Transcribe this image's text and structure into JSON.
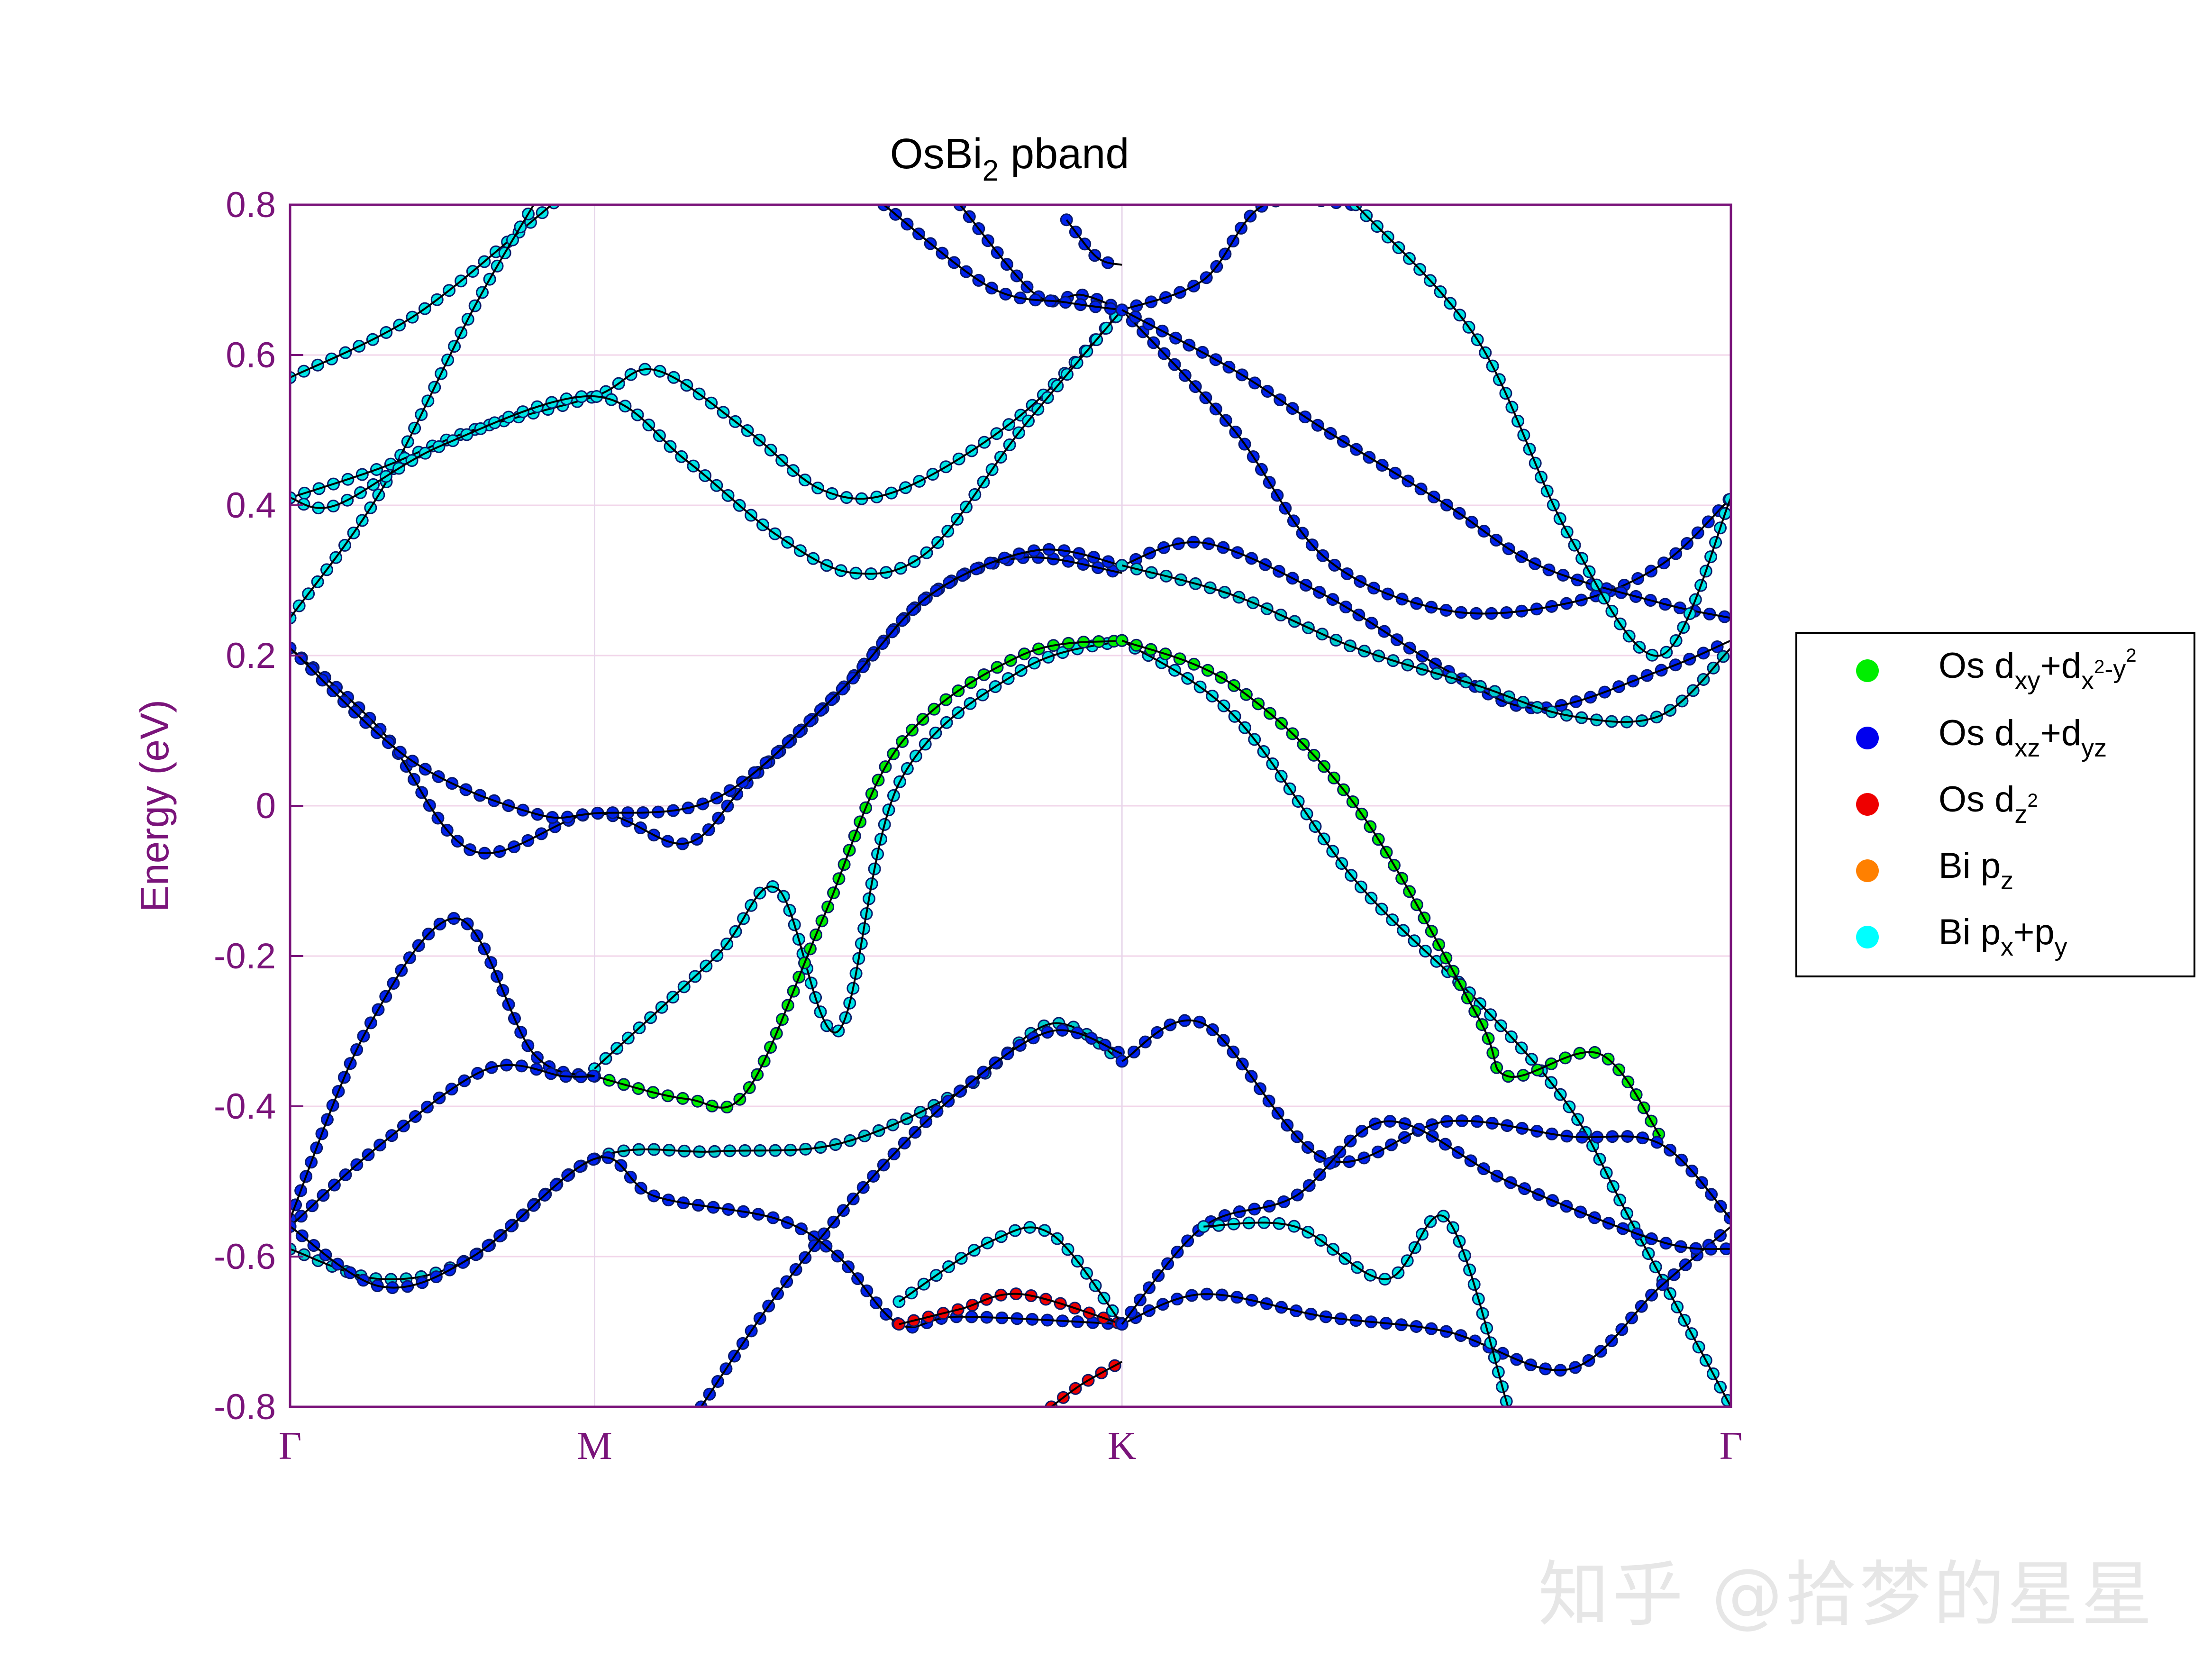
{
  "chart_data": {
    "type": "line",
    "title": "OsBi2 pband",
    "title_main": "OsBi",
    "title_sub": "2",
    "title_rest": " pband",
    "ylabel": "Energy (eV)",
    "ylim": [
      -0.8,
      0.8
    ],
    "yticks": [
      "0.8",
      "0.6",
      "0.4",
      "0.2",
      "0",
      "-0.2",
      "-0.4",
      "-0.6",
      "-0.8"
    ],
    "yticks_values": [
      0.8,
      0.6,
      0.4,
      0.2,
      0,
      -0.2,
      -0.4,
      -0.6,
      -0.8
    ],
    "kpath": [
      "Γ",
      "M",
      "K",
      "Γ"
    ],
    "kpath_positions": [
      0,
      1,
      2.732,
      4.732
    ],
    "grid": true,
    "legend_placement": "right",
    "legend": [
      {
        "label": "Os dxy+dx2-y2",
        "color": "#00ee00"
      },
      {
        "label": "Os dxz+dyz",
        "color": "#0000ee"
      },
      {
        "label": "Os dz2",
        "color": "#ee0000"
      },
      {
        "label": "Bi pz",
        "color": "#ff8000"
      },
      {
        "label": "Bi px+py",
        "color": "#00ffff"
      }
    ],
    "series": [
      {
        "color": "#00e5e5",
        "x": [
          0,
          0.4,
          0.8,
          1.0
        ],
        "y": [
          0.57,
          0.65,
          0.78,
          0.85
        ]
      },
      {
        "color": "#00e5e5",
        "x": [
          0,
          0.3,
          0.6,
          0.8
        ],
        "y": [
          0.25,
          0.42,
          0.66,
          0.8
        ]
      },
      {
        "color": "#00e5e5",
        "x": [
          0,
          0.3,
          0.6,
          1.0,
          1.2,
          1.5,
          1.75,
          2.0,
          2.4,
          2.732
        ],
        "y": [
          0.41,
          0.45,
          0.5,
          0.545,
          0.58,
          0.5,
          0.42,
          0.42,
          0.52,
          0.66
        ]
      },
      {
        "color": "#00e5e5",
        "x": [
          0,
          0.15,
          0.5,
          1.0,
          1.3,
          1.6,
          1.85,
          2.1,
          2.4,
          2.732
        ],
        "y": [
          0.41,
          0.4,
          0.48,
          0.545,
          0.46,
          0.36,
          0.31,
          0.34,
          0.5,
          0.66
        ]
      },
      {
        "color": "#0022ee",
        "x": [
          0,
          0.3,
          0.6,
          1.0,
          1.3,
          1.5,
          1.8,
          2.1,
          2.4,
          2.732
        ],
        "y": [
          0.21,
          0.1,
          -0.06,
          -0.01,
          -0.05,
          0.03,
          0.15,
          0.28,
          0.33,
          0.31
        ]
      },
      {
        "color": "#0022ee",
        "x": [
          0,
          0.4,
          0.8,
          1.0,
          1.4,
          1.8,
          2.1,
          2.45,
          2.732
        ],
        "y": [
          0.21,
          0.06,
          -0.01,
          -0.01,
          0.01,
          0.15,
          0.28,
          0.34,
          0.32
        ]
      },
      {
        "color": "#00e5e5",
        "x": [
          1.0,
          1.4,
          1.6,
          1.8,
          2.0,
          2.4,
          2.732
        ],
        "y": [
          -0.35,
          -0.2,
          -0.11,
          -0.3,
          0.03,
          0.18,
          0.22
        ]
      },
      {
        "color": "#00ee00",
        "x": [
          1.0,
          1.3,
          1.5,
          1.75,
          2.0,
          2.4,
          2.732
        ],
        "y": [
          -0.36,
          -0.39,
          -0.38,
          -0.15,
          0.08,
          0.2,
          0.22
        ]
      },
      {
        "color": "#0022ee",
        "x": [
          0,
          0.25,
          0.55,
          0.8,
          1.0
        ],
        "y": [
          -0.55,
          -0.3,
          -0.15,
          -0.33,
          -0.36
        ]
      },
      {
        "color": "#0022ee",
        "x": [
          0,
          0.3,
          0.65,
          0.9,
          1.0
        ],
        "y": [
          -0.56,
          -0.45,
          -0.35,
          -0.36,
          -0.36
        ]
      },
      {
        "color": "#00cccc",
        "x": [
          0,
          0.3,
          0.6,
          1.0,
          1.4,
          1.8,
          2.2,
          2.5,
          2.732
        ],
        "y": [
          -0.59,
          -0.63,
          -0.6,
          -0.47,
          -0.46,
          -0.45,
          -0.38,
          -0.29,
          -0.34
        ]
      },
      {
        "color": "#0022ee",
        "x": [
          0,
          0.3,
          0.6,
          1.0,
          1.2,
          1.6,
          1.8,
          2.0,
          2.2,
          2.732
        ],
        "y": [
          -0.56,
          -0.64,
          -0.6,
          -0.47,
          -0.52,
          -0.55,
          -0.6,
          -0.69,
          -0.68,
          -0.69
        ]
      },
      {
        "color": "#ee0000",
        "x": [
          2.0,
          2.2,
          2.4,
          2.732
        ],
        "y": [
          -0.69,
          -0.67,
          -0.65,
          -0.69
        ]
      },
      {
        "color": "#00e5e5",
        "x": [
          2.0,
          2.3,
          2.5,
          2.732
        ],
        "y": [
          -0.66,
          -0.58,
          -0.57,
          -0.69
        ]
      },
      {
        "color": "#ee0000",
        "x": [
          2.5,
          2.6,
          2.732
        ],
        "y": [
          -0.8,
          -0.77,
          -0.74
        ]
      },
      {
        "color": "#0022ee",
        "x": [
          1.35,
          1.6,
          1.9,
          2.2,
          2.5,
          2.732
        ],
        "y": [
          -0.8,
          -0.65,
          -0.5,
          -0.38,
          -0.3,
          -0.33
        ]
      },
      {
        "color": "#0022ee",
        "x": [
          2.2,
          2.45,
          2.6,
          2.732
        ],
        "y": [
          0.8,
          0.68,
          0.68,
          0.66
        ]
      },
      {
        "color": "#0022ee",
        "x": [
          1.95,
          2.3,
          2.55,
          2.732
        ],
        "y": [
          0.8,
          0.69,
          0.67,
          0.66
        ]
      },
      {
        "color": "#0022ee",
        "x": [
          2.55,
          2.65,
          2.732
        ],
        "y": [
          0.78,
          0.73,
          0.72
        ]
      },
      {
        "color": "#0022ee",
        "x": [
          2.732,
          3.0,
          3.2,
          3.5
        ],
        "y": [
          0.66,
          0.7,
          0.8,
          0.8
        ]
      },
      {
        "color": "#0022ee",
        "x": [
          2.732,
          3.1,
          3.4,
          3.8,
          4.2,
          4.5,
          4.732
        ],
        "y": [
          0.66,
          0.5,
          0.33,
          0.26,
          0.27,
          0.32,
          0.41
        ]
      },
      {
        "color": "#0022ee",
        "x": [
          2.732,
          3.1,
          3.4,
          3.8,
          4.1,
          4.5,
          4.732
        ],
        "y": [
          0.66,
          0.58,
          0.5,
          0.4,
          0.32,
          0.27,
          0.25
        ]
      },
      {
        "color": "#0022ee",
        "x": [
          2.732,
          3.0,
          3.4,
          3.8,
          4.1,
          4.5,
          4.732
        ],
        "y": [
          0.32,
          0.35,
          0.28,
          0.18,
          0.13,
          0.18,
          0.22
        ]
      },
      {
        "color": "#00cccc",
        "x": [
          2.732,
          3.1,
          3.5,
          3.9,
          4.2,
          4.5,
          4.732
        ],
        "y": [
          0.32,
          0.28,
          0.21,
          0.16,
          0.12,
          0.12,
          0.21
        ]
      },
      {
        "color": "#00e5e5",
        "x": [
          2.732,
          3.1,
          3.5,
          3.9,
          4.2,
          4.4,
          4.732
        ],
        "y": [
          0.22,
          0.12,
          -0.1,
          -0.26,
          -0.4,
          -0.55,
          -0.8
        ]
      },
      {
        "color": "#00ee00",
        "x": [
          2.732,
          3.1,
          3.5,
          3.9,
          4.0,
          4.3,
          4.5
        ],
        "y": [
          0.22,
          0.16,
          0.0,
          -0.28,
          -0.36,
          -0.33,
          -0.44
        ]
      },
      {
        "color": "#0022ee",
        "x": [
          2.732,
          3.0,
          3.4,
          3.8,
          4.2,
          4.5,
          4.732
        ],
        "y": [
          -0.34,
          -0.29,
          -0.47,
          -0.42,
          -0.44,
          -0.45,
          -0.55
        ]
      },
      {
        "color": "#0022ee",
        "x": [
          2.732,
          3.0,
          3.4,
          3.8,
          4.2,
          4.5,
          4.732
        ],
        "y": [
          -0.69,
          -0.65,
          -0.68,
          -0.7,
          -0.75,
          -0.64,
          -0.56
        ]
      },
      {
        "color": "#0022ee",
        "x": [
          2.732,
          3.0,
          3.3,
          3.6,
          4.0,
          4.5,
          4.732
        ],
        "y": [
          -0.69,
          -0.56,
          -0.52,
          -0.42,
          -0.5,
          -0.58,
          -0.59
        ]
      },
      {
        "color": "#00e5e5",
        "x": [
          3.0,
          3.3,
          3.6,
          3.8,
          4.0
        ],
        "y": [
          -0.56,
          -0.56,
          -0.63,
          -0.55,
          -0.8
        ]
      },
      {
        "color": "#00e5e5",
        "x": [
          3.5,
          3.9,
          4.2,
          4.5,
          4.732
        ],
        "y": [
          0.8,
          0.62,
          0.36,
          0.2,
          0.41
        ]
      }
    ]
  },
  "watermark": "知乎 @拾梦的星星"
}
